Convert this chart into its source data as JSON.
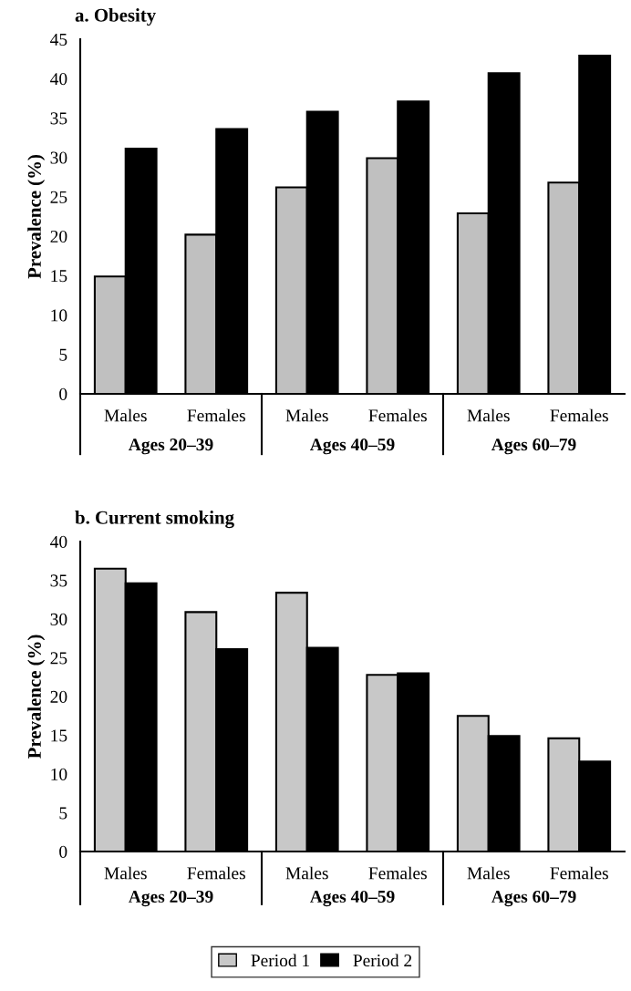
{
  "chart_data": [
    {
      "type": "bar",
      "title": "a. Obesity",
      "ylabel": "Prevalence (%)",
      "categories": [
        "Males",
        "Females",
        "Males",
        "Females",
        "Males",
        "Females"
      ],
      "annotations": [
        "Ages 20–39",
        "Ages 40–59",
        "Ages 60–79"
      ],
      "series": [
        {
          "color": "#c0c0c0",
          "values": [
            14.9,
            20.2,
            26.2,
            29.9,
            22.9,
            26.8
          ]
        },
        {
          "color": "#000000",
          "values": [
            31.1,
            33.6,
            35.8,
            37.1,
            40.7,
            42.9
          ]
        }
      ],
      "ylim": [
        0,
        45
      ],
      "yticks": [
        0,
        5,
        10,
        15,
        20,
        25,
        30,
        35,
        40,
        45
      ],
      "grid": false,
      "legend": false
    },
    {
      "type": "bar",
      "title": "b. Current smoking",
      "ylabel": "Prevalence (%)",
      "categories": [
        "Males",
        "Females",
        "Males",
        "Females",
        "Males",
        "Females"
      ],
      "annotations": [
        "Ages 20–39",
        "Ages 40–59",
        "Ages 60–79"
      ],
      "series": [
        {
          "name": "Period 1",
          "color": "#c8c8c8",
          "values": [
            36.5,
            30.9,
            33.4,
            22.8,
            17.5,
            14.6
          ]
        },
        {
          "name": "Period 2",
          "color": "#000000",
          "values": [
            34.6,
            26.1,
            26.3,
            23.0,
            14.9,
            11.6
          ]
        }
      ],
      "ylim": [
        0,
        40
      ],
      "yticks": [
        0,
        5,
        10,
        15,
        20,
        25,
        30,
        35,
        40
      ],
      "grid": false,
      "legend": "bottom"
    }
  ]
}
